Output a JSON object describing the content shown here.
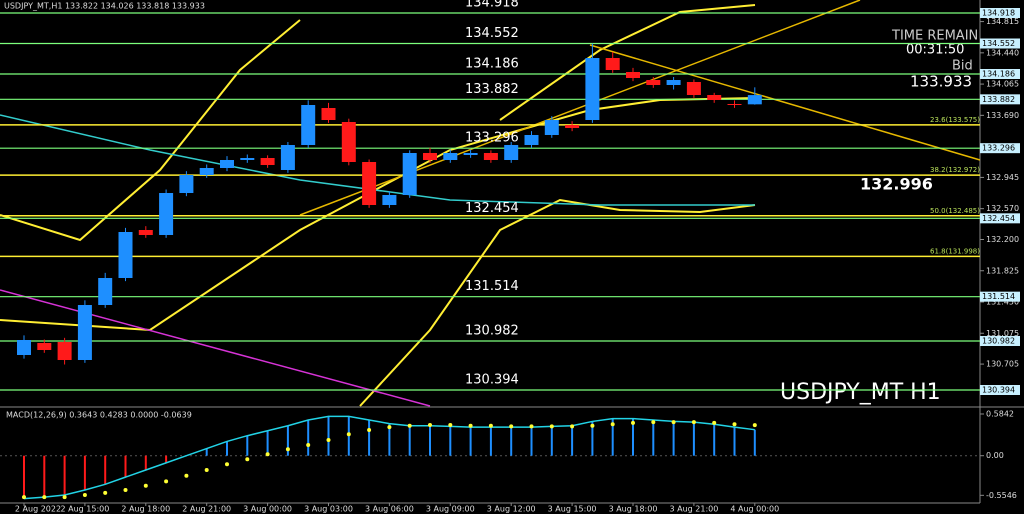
{
  "chart_data": {
    "type": "candlestick",
    "header": "USDJPY_MT,H1  133.822 134.026 133.818 133.933",
    "watermark": "USDJPY_MT H1",
    "time_remain_label": "TIME REMAIN",
    "time_remain": "00:31:50",
    "bid_label": "Bid",
    "bid": "133.933",
    "pivot_label": "132.996",
    "categories": [
      "2 Aug 2022",
      null,
      null,
      "2 Aug 15:00",
      null,
      null,
      "2 Aug 18:00",
      null,
      null,
      "2 Aug 21:00",
      null,
      null,
      "3 Aug 00:00",
      null,
      null,
      "3 Aug 03:00",
      null,
      null,
      "3 Aug 06:00",
      null,
      null,
      "3 Aug 09:00",
      null,
      null,
      "3 Aug 12:00",
      null,
      null,
      "3 Aug 15:00",
      null,
      null,
      "3 Aug 18:00",
      null,
      null,
      "3 Aug 21:00",
      null,
      null,
      "4 Aug 00:00"
    ],
    "open": [
      130.814,
      130.958,
      130.97,
      130.754,
      131.414,
      131.738,
      132.314,
      132.254,
      132.758,
      132.974,
      133.058,
      133.154,
      133.178,
      133.034,
      133.334,
      133.778,
      133.61,
      133.13,
      132.614,
      132.734,
      133.238,
      133.154,
      133.214,
      133.238,
      133.154,
      133.334,
      133.454,
      133.574,
      133.634,
      134.378,
      134.21,
      134.114,
      134.054,
      134.09,
      133.934,
      133.826,
      133.822
    ],
    "high": [
      131.05,
      131.0,
      131.02,
      131.47,
      131.8,
      132.34,
      132.36,
      132.8,
      133.02,
      133.1,
      133.2,
      133.22,
      133.21,
      133.37,
      133.87,
      133.84,
      133.65,
      133.16,
      132.78,
      133.27,
      133.3,
      133.28,
      133.28,
      133.27,
      133.37,
      133.5,
      133.68,
      133.62,
      134.55,
      134.45,
      134.26,
      134.15,
      134.15,
      134.12,
      133.96,
      133.87,
      134.026
    ],
    "low": [
      130.77,
      130.84,
      130.7,
      130.72,
      131.38,
      131.7,
      132.22,
      132.22,
      132.72,
      132.94,
      133.02,
      133.12,
      133.06,
      133.0,
      133.3,
      133.6,
      133.09,
      132.58,
      132.58,
      132.7,
      133.12,
      133.12,
      133.18,
      133.12,
      133.12,
      133.3,
      133.42,
      133.5,
      133.6,
      134.2,
      134.1,
      134.02,
      134.0,
      133.9,
      133.84,
      133.78,
      133.818
    ],
    "close": [
      130.994,
      130.874,
      130.754,
      131.414,
      131.738,
      132.29,
      132.254,
      132.758,
      132.974,
      133.058,
      133.154,
      133.178,
      133.094,
      133.334,
      133.814,
      133.634,
      133.13,
      132.614,
      132.734,
      133.238,
      133.154,
      133.238,
      133.238,
      133.154,
      133.334,
      133.454,
      133.634,
      133.538,
      134.378,
      134.234,
      134.138,
      134.054,
      134.114,
      133.934,
      133.874,
      133.814,
      133.933
    ],
    "up_color": "#1e8fff",
    "down_color": "#ff1a1a",
    "ylim": [
      130.202,
      135.074
    ],
    "yticks": [
      134.815,
      {
        "value": 134.44,
        "label": "134.440"
      },
      134.065,
      {
        "value": 133.69,
        "label": "133.690"
      },
      132.945,
      {
        "value": 132.57,
        "label": "132.570"
      },
      {
        "value": 132.2,
        "label": "132.200"
      },
      131.825,
      {
        "value": 131.45,
        "label": "131.450"
      },
      131.075,
      130.705
    ],
    "levels": [
      134.918,
      134.552,
      134.186,
      133.882,
      133.296,
      132.454,
      131.514,
      130.982,
      130.394
    ],
    "level_color": "#7dff7d",
    "fib_levels": [
      {
        "value": 133.575,
        "label": "23.6(133.575)"
      },
      {
        "value": 132.972,
        "label": "38.2(132.972)"
      },
      {
        "value": 132.485,
        "label": "50.0(132.485)"
      },
      {
        "value": 131.998,
        "label": "61.8(131.998)"
      }
    ],
    "macd": {
      "label": "MACD(12,26,9) 0.3643 0.4283 0.0000 -0.0639",
      "ylim": [
        -0.62,
        0.64
      ],
      "yticks": [
        0.5842,
        {
          "value": 0,
          "label": "0.00"
        },
        -0.5546
      ],
      "main": [
        -0.6,
        -0.58,
        -0.55,
        -0.48,
        -0.4,
        -0.3,
        -0.2,
        -0.1,
        0.0,
        0.1,
        0.2,
        0.28,
        0.35,
        0.42,
        0.5,
        0.55,
        0.55,
        0.5,
        0.45,
        0.42,
        0.42,
        0.41,
        0.4,
        0.4,
        0.4,
        0.4,
        0.41,
        0.42,
        0.48,
        0.52,
        0.52,
        0.5,
        0.48,
        0.47,
        0.44,
        0.4,
        0.3643
      ],
      "signal": [
        -0.58,
        -0.58,
        -0.58,
        -0.55,
        -0.52,
        -0.48,
        -0.42,
        -0.36,
        -0.28,
        -0.2,
        -0.12,
        -0.05,
        0.02,
        0.09,
        0.15,
        0.22,
        0.3,
        0.36,
        0.4,
        0.42,
        0.43,
        0.43,
        0.42,
        0.42,
        0.41,
        0.41,
        0.41,
        0.41,
        0.42,
        0.44,
        0.46,
        0.47,
        0.47,
        0.47,
        0.46,
        0.44,
        0.4283
      ],
      "main_color": "#22d3e6",
      "signal_color": "#ffff33",
      "bar_color": "#1e8fff"
    }
  }
}
